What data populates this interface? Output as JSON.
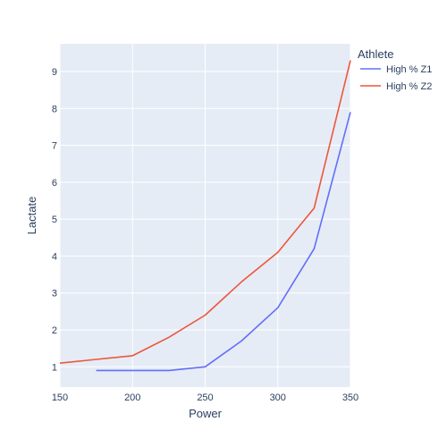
{
  "chart_data": {
    "type": "line",
    "xlabel": "Power",
    "ylabel": "Lactate",
    "xlim": [
      150,
      350
    ],
    "ylim": [
      0.45,
      9.75
    ],
    "x_ticks": [
      150,
      200,
      250,
      300,
      350
    ],
    "y_ticks": [
      1,
      2,
      3,
      4,
      5,
      6,
      7,
      8,
      9
    ],
    "grid": true,
    "legend": {
      "title": "Athlete",
      "placement": "top-right"
    },
    "series": [
      {
        "name": "High % Z1",
        "color": "#636efa",
        "x": [
          175,
          200,
          225,
          250,
          275,
          300,
          325,
          350
        ],
        "y": [
          0.9,
          0.9,
          0.9,
          1.0,
          1.7,
          2.6,
          4.2,
          7.9
        ]
      },
      {
        "name": "High % Z2",
        "color": "#EF553B",
        "x": [
          150,
          175,
          200,
          225,
          250,
          275,
          300,
          325,
          350
        ],
        "y": [
          1.1,
          1.2,
          1.3,
          1.8,
          2.4,
          3.3,
          4.1,
          5.3,
          9.3
        ]
      }
    ]
  },
  "colors": {
    "plot_background": "#E5ECF6",
    "grid": "#ffffff",
    "text": "#2a3f5f"
  }
}
